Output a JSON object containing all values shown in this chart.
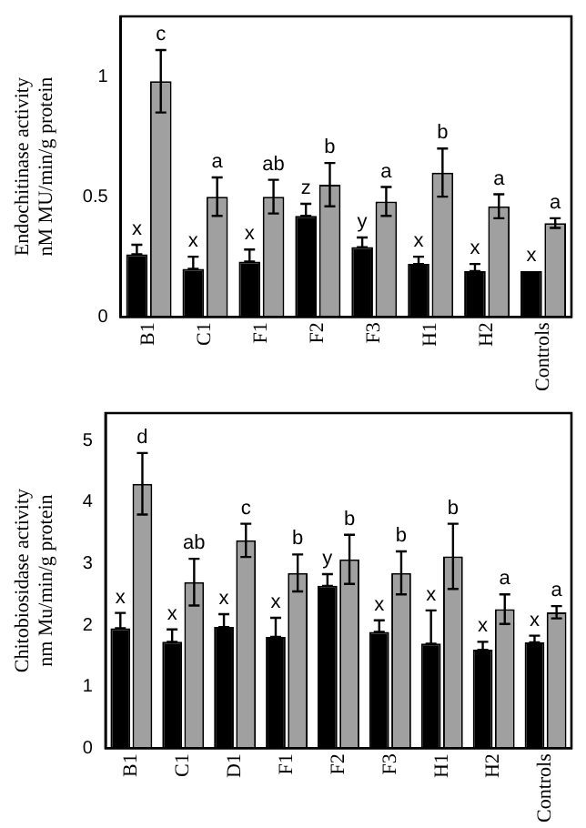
{
  "chart_data": [
    {
      "type": "bar",
      "ylabel": "Endochitinase activity\nnM MU/min/g protein",
      "categories": [
        "B1",
        "C1",
        "F1",
        "F2",
        "F3",
        "H1",
        "H2",
        "Controls"
      ],
      "ylim": [
        0,
        1.25
      ],
      "yticks": [
        0,
        {
          "value": 0.5,
          "label": "0.5"
        },
        1
      ],
      "grid": false,
      "legend": false,
      "series": [
        {
          "color": "#000000",
          "values": [
            0.26,
            0.2,
            0.23,
            0.42,
            0.29,
            0.22,
            0.19,
            0.19
          ],
          "errors": [
            [
              0.26,
              0.3
            ],
            [
              0.2,
              0.25
            ],
            [
              0.23,
              0.28
            ],
            [
              0.42,
              0.47
            ],
            [
              0.29,
              0.33
            ],
            [
              0.22,
              0.25
            ],
            [
              0.19,
              0.22
            ],
            null
          ],
          "value_labels": [
            "x",
            "x",
            "x",
            "z",
            "y",
            "x",
            "x",
            "x"
          ]
        },
        {
          "color": "#a0a0a0",
          "values": [
            0.98,
            0.5,
            0.5,
            0.55,
            0.48,
            0.6,
            0.46,
            0.39
          ],
          "errors": [
            0.13,
            0.08,
            0.07,
            0.09,
            0.06,
            0.1,
            0.05,
            0.02
          ],
          "value_labels": [
            "c",
            "a",
            "ab",
            "b",
            "a",
            "b",
            "a",
            "a"
          ]
        }
      ]
    },
    {
      "type": "bar",
      "ylabel": "Chitobiosidase activity\nnm Mu/min/g protein",
      "categories": [
        "B1",
        "C1",
        "D1",
        "F1",
        "F2",
        "F3",
        "H1",
        "H2",
        "Controls"
      ],
      "ylim": [
        0,
        5.45
      ],
      "yticks": [
        0,
        1,
        2,
        3,
        4,
        5
      ],
      "grid": false,
      "legend": false,
      "series": [
        {
          "color": "#000000",
          "values": [
            1.95,
            1.73,
            1.97,
            1.81,
            2.64,
            1.89,
            1.7,
            1.6,
            1.72
          ],
          "errors": [
            [
              1.95,
              2.2
            ],
            [
              1.73,
              1.93
            ],
            [
              1.97,
              2.18
            ],
            [
              1.81,
              2.12
            ],
            [
              2.64,
              2.83
            ],
            [
              1.89,
              2.08
            ],
            [
              1.7,
              2.24
            ],
            [
              1.6,
              1.73
            ],
            [
              1.72,
              1.83
            ]
          ],
          "value_labels": [
            "x",
            "x",
            "x",
            "x",
            "y",
            "x",
            "x",
            "x",
            "x"
          ]
        },
        {
          "color": "#a0a0a0",
          "values": [
            4.3,
            2.7,
            3.38,
            2.85,
            3.07,
            2.85,
            3.12,
            2.26,
            2.21
          ],
          "errors": [
            0.5,
            0.38,
            0.27,
            0.3,
            0.4,
            0.35,
            0.53,
            0.24,
            0.1
          ],
          "value_labels": [
            "d",
            "ab",
            "c",
            "b",
            "b",
            "b",
            "b",
            "a",
            "a"
          ]
        }
      ]
    }
  ]
}
